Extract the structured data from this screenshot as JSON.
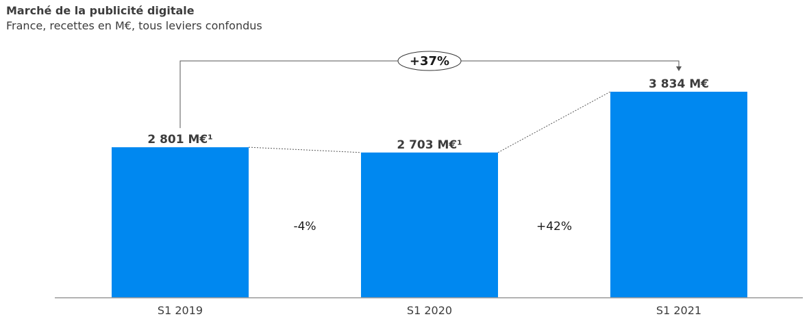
{
  "chart_data": {
    "type": "bar",
    "title": "Marché de la publicité digitale",
    "subtitle": "France, recettes en M€, tous leviers confondus",
    "categories": [
      "S1 2019",
      "S1 2020",
      "S1 2021"
    ],
    "values": [
      2801,
      2703,
      3834
    ],
    "value_labels": [
      "2 801 M€¹",
      "2 703 M€¹",
      "3 834 M€"
    ],
    "changes": [
      "-4%",
      "+42%"
    ],
    "overall_change": "+37%",
    "ylim": [
      0,
      3834
    ],
    "grid": false,
    "legend": "none",
    "colors": {
      "bar": "#0088f0",
      "axis": "#999999",
      "connector": "#555555"
    }
  }
}
